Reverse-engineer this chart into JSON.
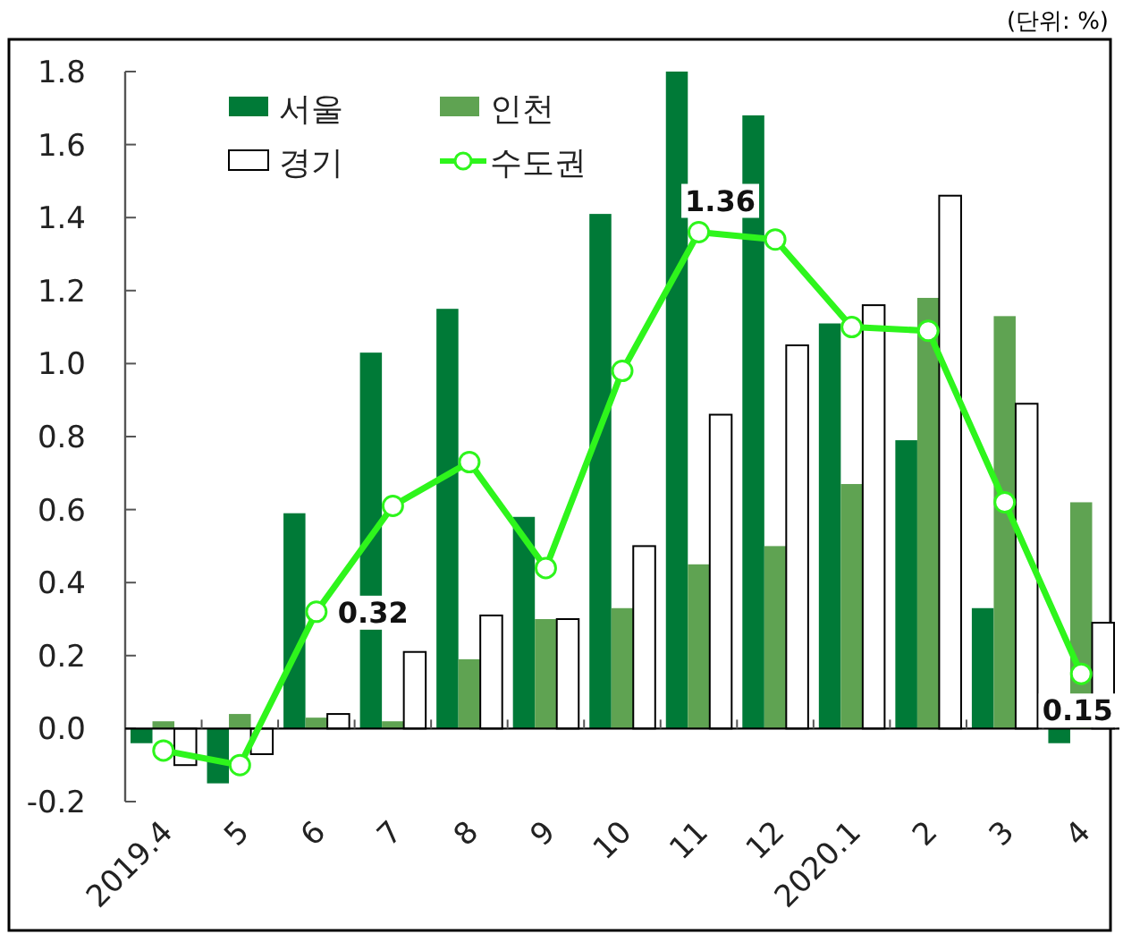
{
  "chart_data": {
    "type": "bar",
    "annotations": [
      "(단위: %)"
    ],
    "categories": [
      "2019.4",
      "5",
      "6",
      "7",
      "8",
      "9",
      "10",
      "11",
      "12",
      "2020.1",
      "2",
      "3",
      "4"
    ],
    "series": [
      {
        "name": "서울",
        "color": "#007a37",
        "values": [
          -0.04,
          -0.15,
          0.59,
          1.03,
          1.15,
          0.58,
          1.41,
          1.8,
          1.68,
          1.11,
          0.79,
          0.33,
          -0.04
        ]
      },
      {
        "name": "인천",
        "color": "#5fa352",
        "values": [
          0.02,
          0.04,
          0.03,
          0.02,
          0.19,
          0.3,
          0.33,
          0.45,
          0.5,
          0.67,
          1.18,
          1.13,
          0.62
        ]
      },
      {
        "name": "경기",
        "color": "#ffffff",
        "values": [
          -0.1,
          -0.07,
          0.04,
          0.21,
          0.31,
          0.3,
          0.5,
          0.86,
          1.05,
          1.16,
          1.46,
          0.89,
          0.29
        ]
      },
      {
        "name": "수도권",
        "type": "line",
        "color": "#2ef51c",
        "marker": "circle",
        "values": [
          -0.06,
          -0.1,
          0.32,
          0.61,
          0.73,
          0.44,
          0.98,
          1.36,
          1.34,
          1.1,
          1.09,
          0.62,
          0.15
        ],
        "value_labels": [
          null,
          null,
          "0.32",
          null,
          null,
          null,
          null,
          "1.36",
          null,
          null,
          null,
          null,
          "0.15"
        ]
      }
    ],
    "ylim": [
      -0.2,
      1.8
    ],
    "yticks": [
      -0.2,
      {
        "value": 0,
        "label": "0.0"
      },
      0.2,
      0.4,
      0.6,
      0.8,
      {
        "value": 1,
        "label": "1.0"
      },
      1.2,
      1.4,
      1.6,
      1.8
    ],
    "legend": "top left"
  }
}
